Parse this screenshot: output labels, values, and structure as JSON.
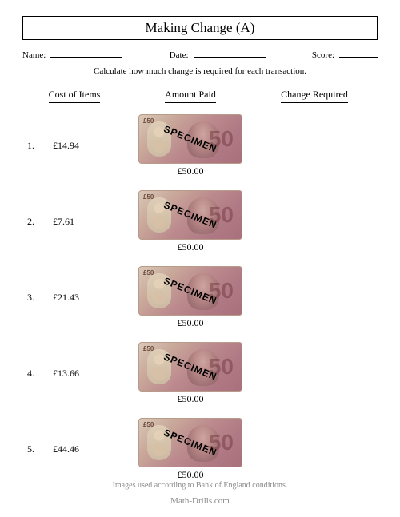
{
  "title": "Making Change (A)",
  "header": {
    "name_label": "Name:",
    "date_label": "Date:",
    "score_label": "Score:"
  },
  "instruction": "Calculate how much change is required for each transaction.",
  "column_headers": {
    "cost": "Cost of Items",
    "paid": "Amount Paid",
    "change": "Change Required"
  },
  "banknote": {
    "denom_text": "50",
    "specimen_text": "SPECIMEN",
    "value_label": "£50.00",
    "colors": {
      "gradient_from": "#d8c9b8",
      "gradient_to": "#a8707c",
      "border": "#b89b8a"
    }
  },
  "rows": [
    {
      "n": "1.",
      "cost": "£14.94",
      "paid": "£50.00"
    },
    {
      "n": "2.",
      "cost": "£7.61",
      "paid": "£50.00"
    },
    {
      "n": "3.",
      "cost": "£21.43",
      "paid": "£50.00"
    },
    {
      "n": "4.",
      "cost": "£13.66",
      "paid": "£50.00"
    },
    {
      "n": "5.",
      "cost": "£44.46",
      "paid": "£50.00"
    }
  ],
  "footer": {
    "conditions": "Images used according to Bank of England conditions.",
    "site": "Math-Drills.com"
  }
}
